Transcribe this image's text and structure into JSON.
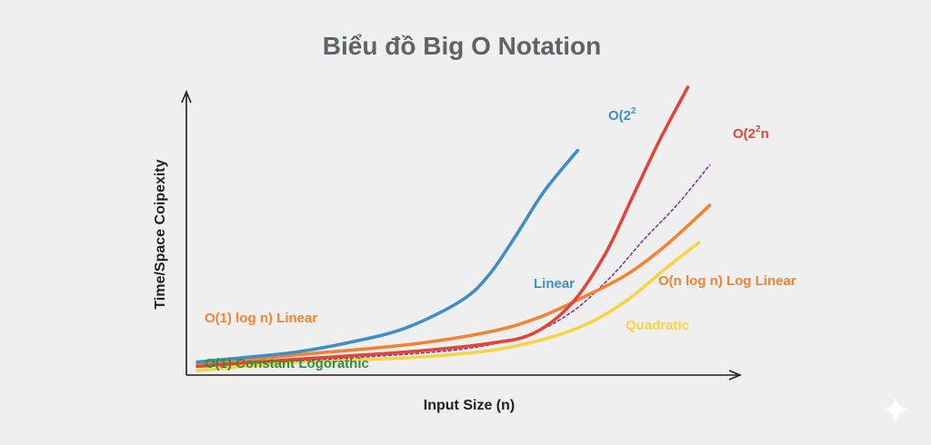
{
  "chart_data": {
    "type": "line",
    "title": "Biểu đồ Big O Notation",
    "xlabel": "Input Size (n)",
    "ylabel": "Time/Space Coipexity",
    "xlim": [
      0,
      10
    ],
    "ylim": [
      0,
      10
    ],
    "grid": false,
    "colors": {
      "blue": "#3d8fc6",
      "red": "#e0463a",
      "purple": "#7b3fa0",
      "orange": "#ef8434",
      "yellow": "#f5d547",
      "green": "#2f8f3a"
    },
    "series": [
      {
        "color": "blue",
        "style": "solid",
        "x": [
          0.2,
          1,
          2,
          3,
          4,
          5,
          5.5,
          6,
          6.5,
          7.1
        ],
        "y": [
          0.45,
          0.6,
          0.8,
          1.15,
          1.65,
          2.6,
          3.5,
          4.9,
          6.4,
          7.8
        ]
      },
      {
        "color": "red",
        "style": "solid",
        "x": [
          0.2,
          2,
          4,
          5.5,
          6.3,
          7,
          7.6,
          8.1,
          8.6,
          9.1
        ],
        "y": [
          0.3,
          0.55,
          0.8,
          1.1,
          1.45,
          2.5,
          4.2,
          6.2,
          8.2,
          10.0
        ]
      },
      {
        "color": "purple",
        "style": "dashed",
        "x": [
          1,
          3,
          5,
          6.2,
          7,
          7.7,
          8.3,
          8.9,
          9.5
        ],
        "y": [
          0.4,
          0.6,
          0.9,
          1.4,
          2.2,
          3.4,
          4.7,
          5.9,
          7.3
        ]
      },
      {
        "color": "orange",
        "style": "solid",
        "x": [
          0.2,
          2,
          4,
          5.5,
          6.4,
          7.2,
          8,
          8.7,
          9.5
        ],
        "y": [
          0.35,
          0.7,
          1.05,
          1.5,
          2.0,
          2.7,
          3.5,
          4.5,
          5.9
        ]
      },
      {
        "color": "yellow",
        "style": "solid",
        "x": [
          0.2,
          2,
          4,
          5.5,
          6.5,
          7.3,
          8,
          8.7,
          9.3
        ],
        "y": [
          0.15,
          0.45,
          0.6,
          0.85,
          1.25,
          1.8,
          2.6,
          3.7,
          4.6
        ]
      }
    ],
    "annotations": [
      {
        "text": "O(2",
        "sup": "2",
        "trail": "",
        "color": "blue"
      },
      {
        "text": "O(2",
        "sup": "2",
        "trail": "n",
        "color": "red"
      },
      {
        "text": "Linear",
        "sup": "",
        "trail": "",
        "color": "blue"
      },
      {
        "text": "O(n log n) Log Linear",
        "sup": "",
        "trail": "",
        "color": "orange"
      },
      {
        "text": "O(1) log n) Linear",
        "sup": "",
        "trail": "",
        "color": "orange"
      },
      {
        "text": "Quadratic",
        "sup": "",
        "trail": "",
        "color": "yellow"
      },
      {
        "text": "O(1) Constant Logorathic",
        "sup": "",
        "trail": "",
        "color": "green"
      }
    ]
  }
}
